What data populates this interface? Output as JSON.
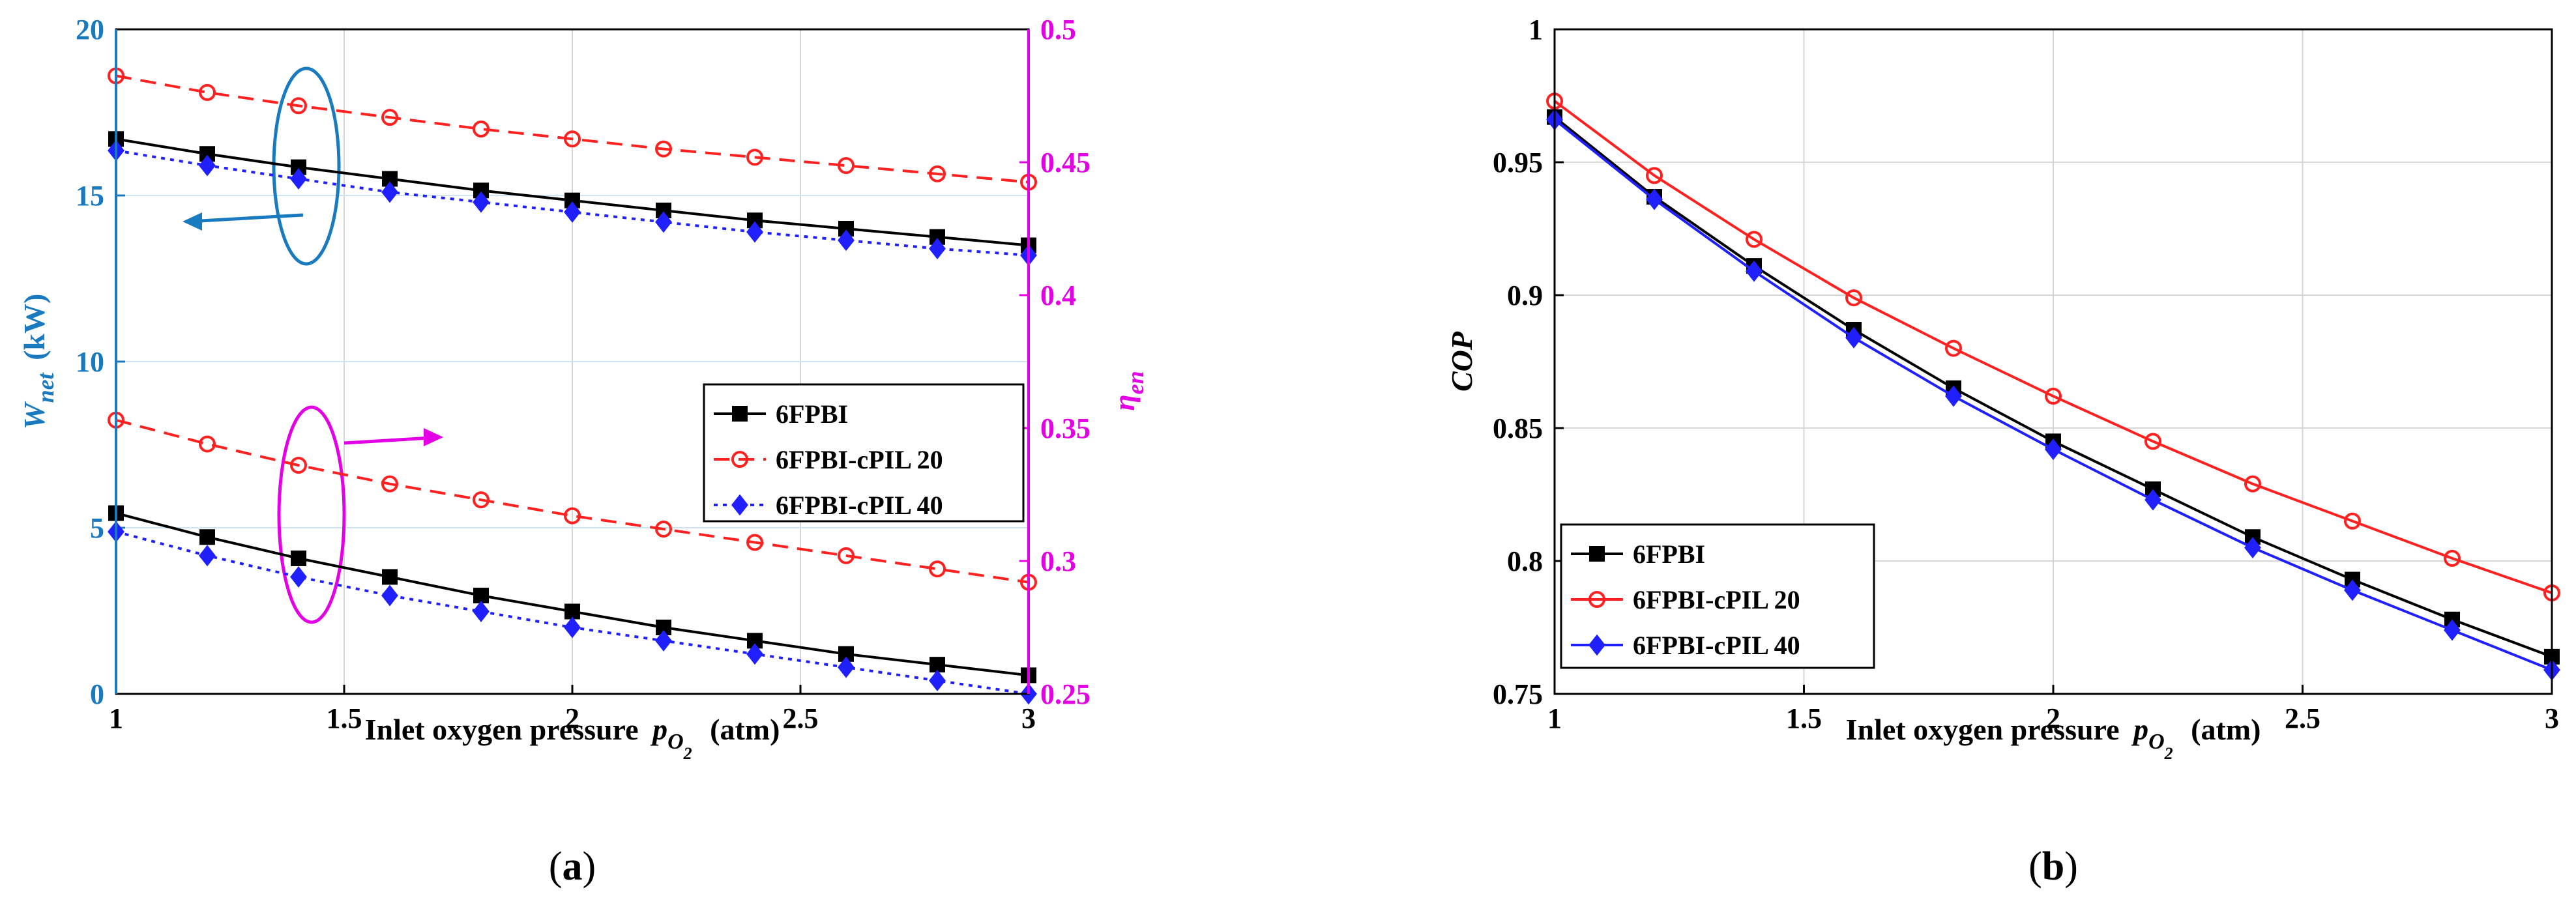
{
  "panels": [
    {
      "id": "a",
      "label_open": "(",
      "label_letter": "a",
      "label_close": ")",
      "xlabel": "Inlet oxygen pressure",
      "xlabel_symbol": "p",
      "xlabel_sub1": "O",
      "xlabel_sub2": "2",
      "xlabel_unit": "(atm)",
      "ylabel_left_symbol": "W",
      "ylabel_left_sub": "net",
      "ylabel_left_unit": "(kW)",
      "ylabel_right_symbol": "η",
      "ylabel_right_sub": "en",
      "left_color": "#1a7ac0",
      "right_color": "#e400e4",
      "xticks": [
        "1",
        "1.5",
        "2",
        "2.5",
        "3"
      ],
      "yticks_left": [
        "0",
        "5",
        "10",
        "15",
        "20"
      ],
      "yticks_right": [
        "0.25",
        "0.3",
        "0.35",
        "0.4",
        "0.45",
        "0.5"
      ]
    },
    {
      "id": "b",
      "label_open": "(",
      "label_letter": "b",
      "label_close": ")",
      "xlabel": "Inlet oxygen pressure",
      "xlabel_symbol": "p",
      "xlabel_sub1": "O",
      "xlabel_sub2": "2",
      "xlabel_unit": "(atm)",
      "ylabel": "COP",
      "xticks": [
        "1",
        "1.5",
        "2",
        "2.5",
        "3"
      ],
      "yticks": [
        "0.75",
        "0.8",
        "0.85",
        "0.9",
        "0.95",
        "1"
      ]
    }
  ],
  "chart_data": [
    {
      "type": "line",
      "panel": "a",
      "x": [
        1,
        1.2,
        1.4,
        1.6,
        1.8,
        2,
        2.2,
        2.4,
        2.6,
        2.8,
        3
      ],
      "xlim": [
        1,
        3
      ],
      "ylim_left": [
        0,
        20
      ],
      "ylim_right": [
        0.25,
        0.5
      ],
      "grid": true,
      "legend": {
        "position": "center-right",
        "entries": [
          "6FPBI",
          "6FPBI-cPIL 20",
          "6FPBI-cPIL 40"
        ]
      },
      "series": [
        {
          "name": "6FPBI",
          "axis": "left",
          "color": "#000000",
          "marker": "square",
          "dash": "solid",
          "values": [
            16.7,
            16.25,
            15.85,
            15.5,
            15.15,
            14.85,
            14.55,
            14.25,
            14.0,
            13.75,
            13.5
          ]
        },
        {
          "name": "6FPBI-cPIL 20",
          "axis": "left",
          "color": "#ff2020",
          "marker": "circle",
          "dash": "dashed",
          "values": [
            18.6,
            18.1,
            17.7,
            17.35,
            17.0,
            16.7,
            16.4,
            16.15,
            15.9,
            15.65,
            15.4
          ]
        },
        {
          "name": "6FPBI-cPIL 40",
          "axis": "left",
          "color": "#2020ff",
          "marker": "diamond",
          "dash": "dotted",
          "values": [
            16.35,
            15.9,
            15.5,
            15.1,
            14.8,
            14.5,
            14.2,
            13.9,
            13.65,
            13.4,
            13.2
          ]
        },
        {
          "name": "6FPBI",
          "axis": "right",
          "color": "#000000",
          "marker": "square",
          "dash": "solid",
          "values": [
            0.318,
            0.309,
            0.301,
            0.294,
            0.287,
            0.281,
            0.275,
            0.27,
            0.265,
            0.261,
            0.257
          ]
        },
        {
          "name": "6FPBI-cPIL 20",
          "axis": "right",
          "color": "#ff2020",
          "marker": "circle",
          "dash": "dashed",
          "values": [
            0.353,
            0.344,
            0.336,
            0.329,
            0.323,
            0.317,
            0.312,
            0.307,
            0.302,
            0.297,
            0.292
          ]
        },
        {
          "name": "6FPBI-cPIL 40",
          "axis": "right",
          "color": "#2020ff",
          "marker": "diamond",
          "dash": "dotted",
          "values": [
            0.311,
            0.302,
            0.294,
            0.287,
            0.281,
            0.275,
            0.27,
            0.265,
            0.26,
            0.255,
            0.25
          ]
        }
      ],
      "annotations": [
        {
          "shape": "ellipse",
          "color": "#1a7ac0",
          "target": "left axis",
          "arrow": "left"
        },
        {
          "shape": "ellipse",
          "color": "#e400e4",
          "target": "right axis",
          "arrow": "right"
        }
      ]
    },
    {
      "type": "line",
      "panel": "b",
      "x": [
        1,
        1.2,
        1.4,
        1.6,
        1.8,
        2,
        2.2,
        2.4,
        2.6,
        2.8,
        3
      ],
      "xlim": [
        1,
        3
      ],
      "ylim": [
        0.75,
        1
      ],
      "grid": true,
      "legend": {
        "position": "bottom-left",
        "entries": [
          "6FPBI",
          "6FPBI-cPIL 20",
          "6FPBI-cPIL 40"
        ]
      },
      "series": [
        {
          "name": "6FPBI",
          "color": "#000000",
          "marker": "square",
          "values": [
            0.967,
            0.937,
            0.911,
            0.887,
            0.865,
            0.845,
            0.827,
            0.809,
            0.793,
            0.778,
            0.764
          ]
        },
        {
          "name": "6FPBI-cPIL 20",
          "color": "#ff2020",
          "marker": "circle",
          "values": [
            0.973,
            0.945,
            0.921,
            0.899,
            0.88,
            0.862,
            0.845,
            0.829,
            0.815,
            0.801,
            0.788
          ]
        },
        {
          "name": "6FPBI-cPIL 40",
          "color": "#2020ff",
          "marker": "diamond",
          "values": [
            0.966,
            0.936,
            0.909,
            0.884,
            0.862,
            0.842,
            0.823,
            0.805,
            0.789,
            0.774,
            0.759
          ]
        }
      ]
    }
  ]
}
